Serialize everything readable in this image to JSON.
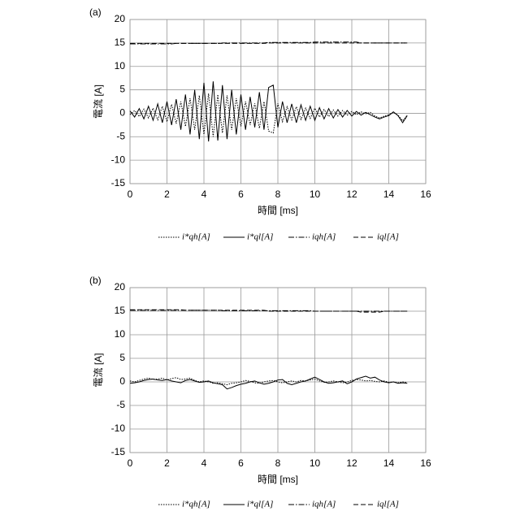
{
  "chart_data": [
    {
      "type": "line",
      "title": "(a)",
      "xlabel": "時間 [ms]",
      "ylabel": "電流 [A]",
      "x": [
        0,
        0.25,
        0.5,
        0.75,
        1,
        1.25,
        1.5,
        1.75,
        2,
        2.25,
        2.5,
        2.75,
        3,
        3.25,
        3.5,
        3.75,
        4,
        4.25,
        4.5,
        4.75,
        5,
        5.25,
        5.5,
        5.75,
        6,
        6.25,
        6.5,
        6.75,
        7,
        7.25,
        7.5,
        7.75,
        8,
        8.25,
        8.5,
        8.75,
        9,
        9.25,
        9.5,
        9.75,
        10,
        10.25,
        10.5,
        10.75,
        11,
        11.25,
        11.5,
        11.75,
        12,
        12.25,
        12.5,
        12.75,
        13,
        13.25,
        13.5,
        13.75,
        14,
        14.25,
        14.5,
        14.75,
        15
      ],
      "xlim": [
        0,
        16
      ],
      "xticks": [
        0,
        2,
        4,
        6,
        8,
        10,
        12,
        14,
        16
      ],
      "ylim": [
        -15,
        20
      ],
      "yticks": [
        -15,
        -10,
        -5,
        0,
        5,
        10,
        15,
        20
      ],
      "grid": true,
      "legend": "bottom",
      "series": [
        {
          "name": "i*qh[A]",
          "color": "#000000",
          "dash": "dotted",
          "values": [
            -0.3,
            0.6,
            -0.7,
            0.9,
            -1.0,
            1.1,
            -1.4,
            1.5,
            -1.8,
            1.9,
            -2.2,
            2.5,
            -2.8,
            3.2,
            -3.5,
            3.8,
            -4.5,
            4.2,
            -5.0,
            4.0,
            -4.2,
            3.8,
            -3.5,
            3.2,
            -2.8,
            2.5,
            -2.5,
            2.1,
            -3.2,
            2.5,
            -3.8,
            -4.2,
            2.1,
            -1.8,
            1.4,
            -1.4,
            1.4,
            -1.3,
            1.1,
            -1.1,
            1.1,
            -0.8,
            0.8,
            -0.7,
            0.7,
            -0.6,
            0.6,
            -0.4,
            0.4,
            -0.3,
            0.3,
            -0.1,
            0.2,
            -0.6,
            -1.0,
            -0.6,
            -0.3,
            0.2,
            -0.4,
            -1.6,
            -0.4
          ]
        },
        {
          "name": "i*ql[A]",
          "color": "#000000",
          "dash": "solid",
          "values": [
            0.5,
            -0.8,
            1.0,
            -1.2,
            1.5,
            -1.5,
            2.0,
            -2.0,
            2.5,
            -2.5,
            3.0,
            -3.5,
            4.0,
            -4.5,
            5.0,
            -5.5,
            6.5,
            -6.0,
            6.8,
            -5.8,
            6.0,
            -5.5,
            5.0,
            -4.5,
            4.0,
            -3.5,
            3.5,
            -3.0,
            4.5,
            -3.5,
            5.5,
            6.0,
            -3.0,
            2.5,
            -2.0,
            2.0,
            -2.0,
            1.8,
            -1.5,
            1.5,
            -1.5,
            1.2,
            -1.2,
            1.0,
            -1.0,
            0.8,
            -0.8,
            0.6,
            -0.6,
            0.4,
            -0.4,
            0.2,
            -0.3,
            -0.8,
            -1.2,
            -0.8,
            -0.5,
            0.3,
            -0.5,
            -2.0,
            -0.5
          ]
        },
        {
          "name": "iqh[A]",
          "color": "#000000",
          "dash": "dashdot",
          "values": [
            14.8,
            14.8,
            14.8,
            14.8,
            14.8,
            14.8,
            14.8,
            14.8,
            14.8,
            14.8,
            14.9,
            14.9,
            14.9,
            14.9,
            14.9,
            14.9,
            14.9,
            14.9,
            14.9,
            14.9,
            15.0,
            15.0,
            15.0,
            15.0,
            15.0,
            15.0,
            15.0,
            15.0,
            15.0,
            15.0,
            15.1,
            15.1,
            15.1,
            15.1,
            15.1,
            15.1,
            15.1,
            15.1,
            15.1,
            15.1,
            15.2,
            15.2,
            15.2,
            15.2,
            15.2,
            15.2,
            15.2,
            15.2,
            15.2,
            15.2,
            15.0,
            15.0,
            15.0,
            15.0,
            15.0,
            15.0,
            15.0,
            15.0,
            15.0,
            15.0,
            15.0
          ]
        },
        {
          "name": "iql[A]",
          "color": "#000000",
          "dash": "dashed",
          "values": [
            14.9,
            14.9,
            14.9,
            14.9,
            14.9,
            14.9,
            14.9,
            14.9,
            14.9,
            14.9,
            14.9,
            14.9,
            14.9,
            14.9,
            14.9,
            14.9,
            14.9,
            14.9,
            14.9,
            14.9,
            14.9,
            14.9,
            14.9,
            14.9,
            14.9,
            14.9,
            14.9,
            14.9,
            14.9,
            14.9,
            15.0,
            15.0,
            15.0,
            15.0,
            15.0,
            15.0,
            15.0,
            15.0,
            15.0,
            15.0,
            15.0,
            15.0,
            15.0,
            15.0,
            15.0,
            15.0,
            15.0,
            15.0,
            15.0,
            15.0,
            15.0,
            15.0,
            15.0,
            15.0,
            15.0,
            15.0,
            15.0,
            15.0,
            15.0,
            15.0,
            15.0
          ]
        }
      ]
    },
    {
      "type": "line",
      "title": "(b)",
      "xlabel": "時間 [ms]",
      "ylabel": "電流 [A]",
      "x": [
        0,
        0.25,
        0.5,
        0.75,
        1,
        1.25,
        1.5,
        1.75,
        2,
        2.25,
        2.5,
        2.75,
        3,
        3.25,
        3.5,
        3.75,
        4,
        4.25,
        4.5,
        4.75,
        5,
        5.25,
        5.5,
        5.75,
        6,
        6.25,
        6.5,
        6.75,
        7,
        7.25,
        7.5,
        7.75,
        8,
        8.25,
        8.5,
        8.75,
        9,
        9.25,
        9.5,
        9.75,
        10,
        10.25,
        10.5,
        10.75,
        11,
        11.25,
        11.5,
        11.75,
        12,
        12.25,
        12.5,
        12.75,
        13,
        13.25,
        13.5,
        13.75,
        14,
        14.25,
        14.5,
        14.75,
        15
      ],
      "xlim": [
        0,
        16
      ],
      "xticks": [
        0,
        2,
        4,
        6,
        8,
        10,
        12,
        14,
        16
      ],
      "ylim": [
        -15,
        20
      ],
      "yticks": [
        -15,
        -10,
        -5,
        0,
        5,
        10,
        15,
        20
      ],
      "grid": true,
      "legend": "bottom",
      "series": [
        {
          "name": "i*qh[A]",
          "color": "#000000",
          "dash": "dotted",
          "values": [
            0.2,
            0.0,
            0.3,
            0.6,
            0.8,
            0.5,
            0.6,
            0.8,
            0.4,
            0.7,
            0.9,
            0.5,
            0.6,
            0.8,
            0.3,
            0.0,
            0.2,
            0.0,
            -0.3,
            -0.2,
            -0.4,
            -0.6,
            -0.3,
            -0.2,
            0.0,
            0.3,
            0.1,
            -0.2,
            -0.3,
            0.0,
            0.2,
            0.3,
            0.0,
            -0.2,
            0.0,
            0.2,
            0.0,
            0.3,
            0.2,
            0.4,
            0.6,
            0.2,
            -0.1,
            0.0,
            0.2,
            0.0,
            -0.2,
            0.0,
            0.3,
            0.5,
            0.4,
            0.2,
            0.3,
            0.1,
            0.0,
            0.2,
            -0.1,
            0.0,
            -0.2,
            0.0,
            -0.2
          ]
        },
        {
          "name": "i*ql[A]",
          "color": "#000000",
          "dash": "solid",
          "values": [
            -0.3,
            -0.2,
            0.0,
            0.3,
            0.5,
            0.6,
            0.4,
            0.3,
            0.5,
            0.2,
            0.0,
            -0.2,
            0.3,
            0.5,
            0.2,
            -0.1,
            0.0,
            0.2,
            -0.2,
            -0.4,
            -0.6,
            -1.5,
            -1.2,
            -0.8,
            -0.5,
            -0.3,
            0.0,
            0.2,
            -0.2,
            -0.5,
            -0.3,
            0.0,
            0.4,
            0.5,
            -0.3,
            -0.6,
            -0.3,
            0.0,
            0.2,
            0.6,
            1.0,
            0.5,
            0.0,
            -0.3,
            -0.2,
            0.0,
            0.2,
            -0.4,
            0.0,
            0.6,
            0.9,
            1.2,
            0.8,
            1.0,
            0.4,
            0.0,
            -0.2,
            0.0,
            -0.3,
            -0.2,
            -0.3
          ]
        },
        {
          "name": "iqh[A]",
          "color": "#000000",
          "dash": "dashdot",
          "values": [
            15.2,
            15.2,
            15.2,
            15.2,
            15.2,
            15.2,
            15.2,
            15.2,
            15.2,
            15.2,
            15.2,
            15.2,
            15.2,
            15.2,
            15.2,
            15.2,
            15.2,
            15.2,
            15.2,
            15.2,
            15.1,
            15.1,
            15.1,
            15.1,
            15.1,
            15.1,
            15.1,
            15.1,
            15.1,
            15.1,
            15.1,
            15.1,
            15.1,
            15.1,
            15.1,
            15.1,
            15.1,
            15.1,
            15.1,
            15.1,
            15.0,
            15.0,
            15.0,
            15.0,
            15.0,
            15.0,
            15.0,
            15.0,
            15.0,
            15.0,
            15.0,
            15.0,
            15.0,
            15.0,
            15.0,
            15.0,
            15.0,
            15.0,
            15.0,
            15.0,
            15.0
          ]
        },
        {
          "name": "iql[A]",
          "color": "#000000",
          "dash": "dashed",
          "values": [
            15.3,
            15.3,
            15.3,
            15.3,
            15.3,
            15.3,
            15.3,
            15.3,
            15.3,
            15.3,
            15.3,
            15.3,
            15.2,
            15.2,
            15.2,
            15.2,
            15.2,
            15.2,
            15.2,
            15.2,
            15.2,
            15.2,
            15.2,
            15.2,
            15.2,
            15.2,
            15.2,
            15.2,
            15.2,
            15.2,
            15.0,
            15.0,
            15.0,
            15.0,
            15.0,
            15.0,
            15.0,
            15.0,
            15.0,
            15.0,
            15.0,
            15.0,
            15.0,
            15.0,
            15.0,
            15.0,
            15.0,
            15.0,
            15.0,
            15.0,
            14.8,
            14.8,
            14.8,
            14.8,
            14.8,
            15.0,
            15.0,
            15.0,
            15.0,
            15.0,
            15.0
          ]
        }
      ]
    }
  ]
}
